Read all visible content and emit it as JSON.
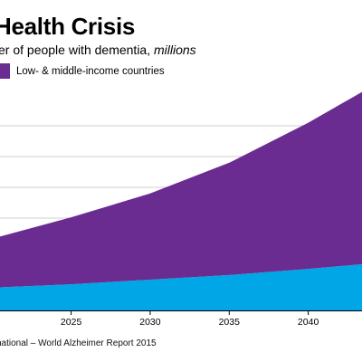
{
  "title_text": "Health Crisis",
  "subtitle": {
    "text": "er of people with dementia, ",
    "unit": "millions"
  },
  "source_note": "national – World Alzheimer Report 2015",
  "colors": {
    "low_middle_income": "#6a2c91",
    "high_income": "#00a6e6",
    "gridline": "#cfcfcf",
    "axis": "#000000"
  },
  "chart_data": {
    "type": "area",
    "stacked": true,
    "title": "Health Crisis",
    "subtitle": "er of people with dementia, millions",
    "ylabel": "",
    "xlabel": "",
    "x_ticks": [
      2025,
      2030,
      2035,
      2040
    ],
    "xlim": [
      2020.5,
      2043.4
    ],
    "ylim": [
      0,
      140
    ],
    "grid": true,
    "legend": {
      "placement": "top-left"
    },
    "x": [
      2020.5,
      2025,
      2030,
      2035,
      2040,
      2043.4
    ],
    "series": [
      {
        "name": "",
        "color": "#00a6e6",
        "values": [
          15,
          17,
          20,
          23,
          27,
          30
        ]
      },
      {
        "name": "Low- & middle-income countries",
        "color": "#6a2c91",
        "values": [
          33,
          43.5,
          56,
          73,
          95,
          112
        ]
      }
    ]
  }
}
